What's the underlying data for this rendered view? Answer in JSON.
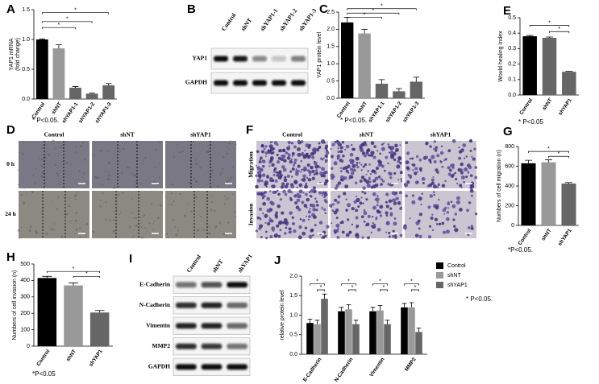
{
  "chart_data": [
    {
      "type": "bar",
      "label": "A",
      "ylabel": "YAP1 mRNA\n(fold change)",
      "categories": [
        "Control",
        "shNT",
        "shYAP1-1",
        "shYAP1-2",
        "shYAP1-3"
      ],
      "values": [
        1.0,
        0.85,
        0.19,
        0.09,
        0.23
      ],
      "errors": [
        0.01,
        0.06,
        0.02,
        0.01,
        0.03
      ],
      "colors": [
        "#000000",
        "#999999",
        "#666666",
        "#666666",
        "#666666"
      ],
      "ylim": [
        0,
        1.5
      ],
      "yticks": [
        {
          "value": 0,
          "label": "0.0"
        },
        {
          "value": 0.5,
          "label": "0.5"
        },
        {
          "value": 1,
          "label": "1.0"
        },
        {
          "value": 1.5,
          "label": "1.5"
        }
      ],
      "significance": [
        "*",
        "*",
        "*"
      ],
      "footnote": "* P<0.05."
    },
    {
      "type": "bar",
      "label": "C",
      "ylabel": "YAP1 protein level",
      "categories": [
        "Control",
        "shNT",
        "shYAP1-1",
        "shYAP1-2",
        "shYAP1-3"
      ],
      "values": [
        2.2,
        1.88,
        0.42,
        0.2,
        0.48
      ],
      "errors": [
        0.15,
        0.12,
        0.12,
        0.08,
        0.13
      ],
      "colors": [
        "#000000",
        "#999999",
        "#666666",
        "#666666",
        "#666666"
      ],
      "ylim": [
        0,
        2.5
      ],
      "yticks": [
        {
          "value": 0,
          "label": "0.0"
        },
        0.5,
        {
          "value": 1,
          "label": "1.0"
        },
        1.5,
        {
          "value": 2,
          "label": "2.0"
        },
        2.5
      ],
      "significance": [
        "*",
        "*",
        "*"
      ],
      "footnote": "* P<0.05."
    },
    {
      "type": "bar",
      "label": "E",
      "ylabel": "Would healing Index",
      "categories": [
        "Control",
        "shNT",
        "shYAP1"
      ],
      "values": [
        0.38,
        0.37,
        0.15
      ],
      "errors": [
        0.005,
        0.005,
        0.003
      ],
      "colors": [
        "#000000",
        "#666666",
        "#666666"
      ],
      "ylim": [
        0,
        0.5
      ],
      "yticks": [
        {
          "value": 0,
          "label": "0.0"
        },
        0.1,
        0.2,
        0.3,
        0.4,
        0.5
      ],
      "significance": [
        "*",
        "*"
      ],
      "footnote": "* P<0.05"
    },
    {
      "type": "bar",
      "label": "G",
      "ylabel": "Numbers of cell migration (n)",
      "categories": [
        "Control",
        "shNT",
        "shYAP1"
      ],
      "values": [
        630,
        640,
        425
      ],
      "errors": [
        30,
        25,
        10
      ],
      "colors": [
        "#000000",
        "#999999",
        "#666666"
      ],
      "ylim": [
        0,
        800
      ],
      "yticks": [
        0,
        200,
        400,
        600,
        800
      ],
      "significance": [
        "*",
        "*"
      ],
      "footnote": "*P<0.05."
    },
    {
      "type": "bar",
      "label": "H",
      "ylabel": "Numbers of cell invasion (n)",
      "categories": [
        "Control",
        "shNT",
        "shYAP1"
      ],
      "values": [
        415,
        370,
        205
      ],
      "errors": [
        10,
        15,
        12
      ],
      "colors": [
        "#000000",
        "#999999",
        "#666666"
      ],
      "ylim": [
        0,
        500
      ],
      "yticks": [
        0,
        100,
        200,
        300,
        400,
        500
      ],
      "significance": [
        "*",
        "*"
      ],
      "footnote": "*P<0.05"
    },
    {
      "type": "grouped_bar",
      "label": "J",
      "ylabel": "relative protein level",
      "categories": [
        "E-Cadherin",
        "N-Cadherin",
        "Vimentin",
        "MMP2"
      ],
      "series": [
        {
          "name": "Control",
          "color": "#000000",
          "values": [
            0.8,
            1.1,
            1.1,
            1.2
          ],
          "errors": [
            0.1,
            0.1,
            0.1,
            0.1
          ]
        },
        {
          "name": "shNT",
          "color": "#999999",
          "values": [
            0.77,
            1.15,
            1.12,
            1.2
          ],
          "errors": [
            0.1,
            0.12,
            0.13,
            0.12
          ]
        },
        {
          "name": "shYAP1",
          "color": "#666666",
          "values": [
            1.42,
            0.77,
            0.77,
            0.57
          ],
          "errors": [
            0.12,
            0.1,
            0.1,
            0.1
          ]
        }
      ],
      "ylim": [
        0,
        2
      ],
      "yticks": [
        {
          "value": 0,
          "label": "0.0"
        },
        0.5,
        {
          "value": 1,
          "label": "1.0"
        },
        1.5,
        {
          "value": 2,
          "label": "2.0"
        }
      ],
      "legend": "right",
      "significance": [
        "*",
        "*",
        "*",
        "*",
        "*",
        "*",
        "*",
        "*"
      ],
      "footnote": "* P<0.05."
    }
  ],
  "blots": [
    {
      "label": "B",
      "columns": [
        "Control",
        "shNT",
        "shYAP1-1",
        "shYAP1-2",
        "shYAP1-3"
      ],
      "rows": [
        "YAP1",
        "GAPDH"
      ]
    },
    {
      "label": "I",
      "columns": [
        "Control",
        "shNT",
        "shYAP1"
      ],
      "rows": [
        "E-Cadherin",
        "N-Cadherin",
        "Vimentin",
        "MMP2",
        "GAPDH"
      ]
    }
  ],
  "images": [
    {
      "label": "D",
      "columns": [
        "Control",
        "shNT",
        "shYAP1"
      ],
      "rows": [
        "0 h",
        "24 h"
      ]
    },
    {
      "label": "F",
      "columns": [
        "Control",
        "shNT",
        "shYAP1"
      ],
      "rows": [
        "Migration",
        "Invasion"
      ]
    }
  ]
}
